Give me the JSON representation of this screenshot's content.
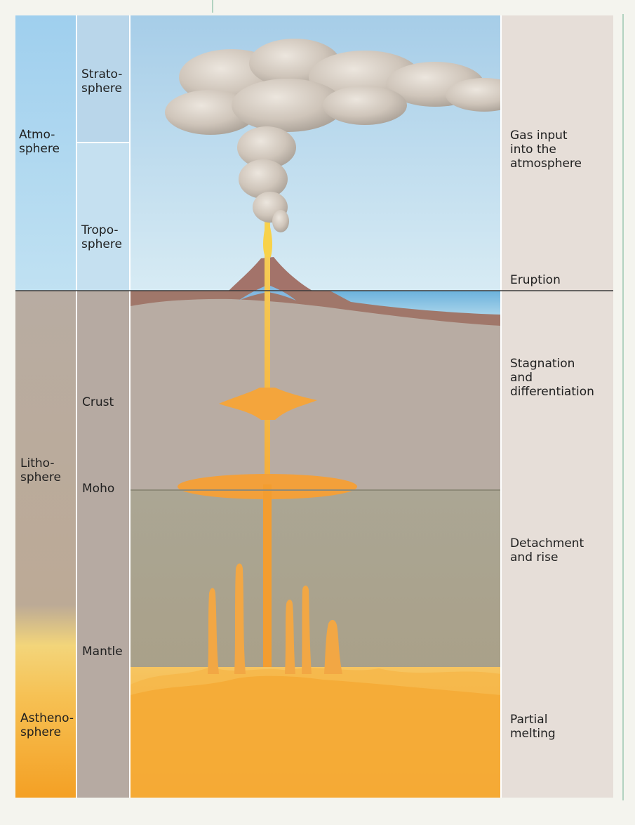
{
  "colors": {
    "sky": "#bfdcef",
    "atmosphere_band": "#a9d3ef",
    "crust": "#b9aca4",
    "mantle": "#aaa592",
    "magma": "#f3a83a",
    "asthenosphere": "#f6a52a",
    "right_panel": "#e3dbd4",
    "ash_cloud": "#cfc6bd"
  },
  "spheres": {
    "atmosphere": "Atmo-\nsphere",
    "lithosphere": "Litho-\nsphere",
    "asthenosphere": "Astheno-\nsphere"
  },
  "layers": {
    "stratosphere": "Strato-\nsphere",
    "troposphere": "Tropo-\nsphere",
    "crust": "Crust",
    "moho": "Moho",
    "mantle": "Mantle"
  },
  "processes": {
    "gas_input": "Gas input\ninto the\natmosphere",
    "eruption": "Eruption",
    "stagnation": "Stagnation\nand\ndifferentiation",
    "detachment": "Detachment\nand rise",
    "partial_melting": "Partial\nmelting"
  }
}
